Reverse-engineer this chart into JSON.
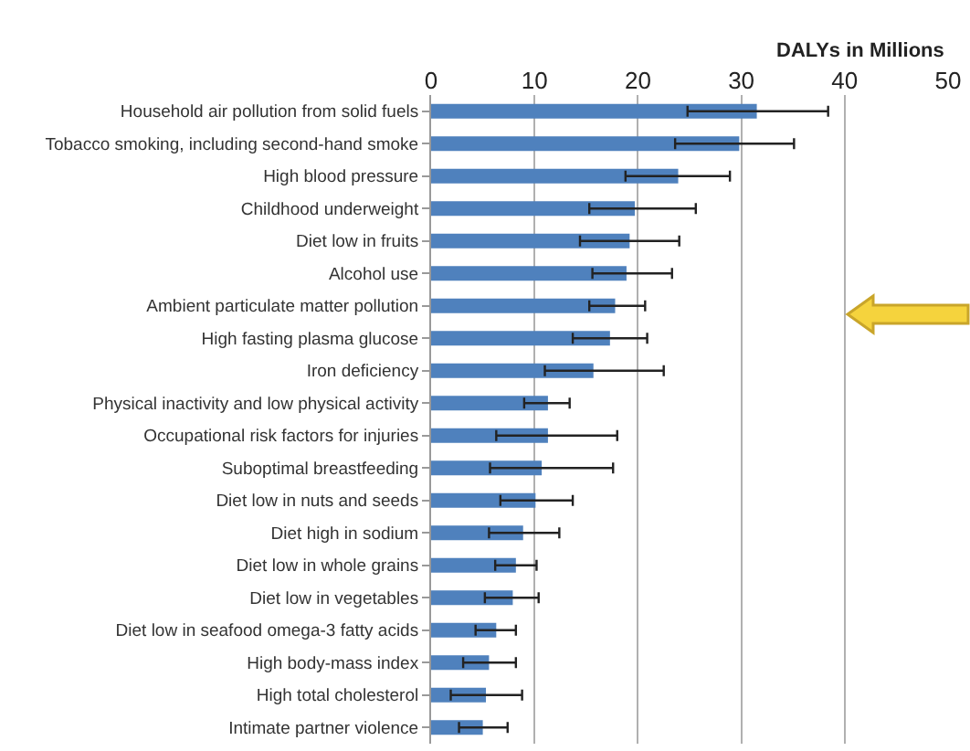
{
  "chart_data": {
    "type": "bar",
    "orientation": "horizontal",
    "xlabel": "DALYs in Millions",
    "categories": [
      "Household air pollution from solid fuels",
      "Tobacco smoking, including second-hand smoke",
      "High blood pressure",
      "Childhood underweight",
      "Diet low in fruits",
      "Alcohol use",
      "Ambient particulate matter pollution",
      "High fasting plasma glucose",
      "Iron deficiency",
      "Physical inactivity and low physical activity",
      "Occupational risk factors for injuries",
      "Suboptimal breastfeeding",
      "Diet low in nuts and seeds",
      "Diet high in sodium",
      "Diet low in whole grains",
      "Diet low in vegetables",
      "Diet low in seafood omega-3 fatty acids",
      "High body-mass index",
      "High total cholesterol",
      "Intimate partner violence"
    ],
    "series": [
      {
        "color": "#4f81bd",
        "values": [
          31.5,
          29.8,
          23.9,
          19.7,
          19.2,
          18.9,
          17.8,
          17.3,
          15.7,
          11.3,
          11.3,
          10.7,
          10.1,
          8.9,
          8.2,
          7.9,
          6.3,
          5.6,
          5.3,
          5.0
        ],
        "errors": [
          [
            24.8,
            38.4
          ],
          [
            23.6,
            35.1
          ],
          [
            18.8,
            28.9
          ],
          [
            15.3,
            25.6
          ],
          [
            14.4,
            24.0
          ],
          [
            15.6,
            23.3
          ],
          [
            15.3,
            20.7
          ],
          [
            13.7,
            20.9
          ],
          [
            11.0,
            22.5
          ],
          [
            9.0,
            13.4
          ],
          [
            6.3,
            18.0
          ],
          [
            5.7,
            17.6
          ],
          [
            6.7,
            13.7
          ],
          [
            5.6,
            12.4
          ],
          [
            6.2,
            10.2
          ],
          [
            5.2,
            10.4
          ],
          [
            4.3,
            8.2
          ],
          [
            3.1,
            8.2
          ],
          [
            1.9,
            8.8
          ],
          [
            2.7,
            7.4
          ]
        ]
      }
    ],
    "xlim": [
      0,
      50
    ],
    "xticks": [
      0,
      10,
      20,
      30,
      40,
      50
    ],
    "grid": "x"
  }
}
